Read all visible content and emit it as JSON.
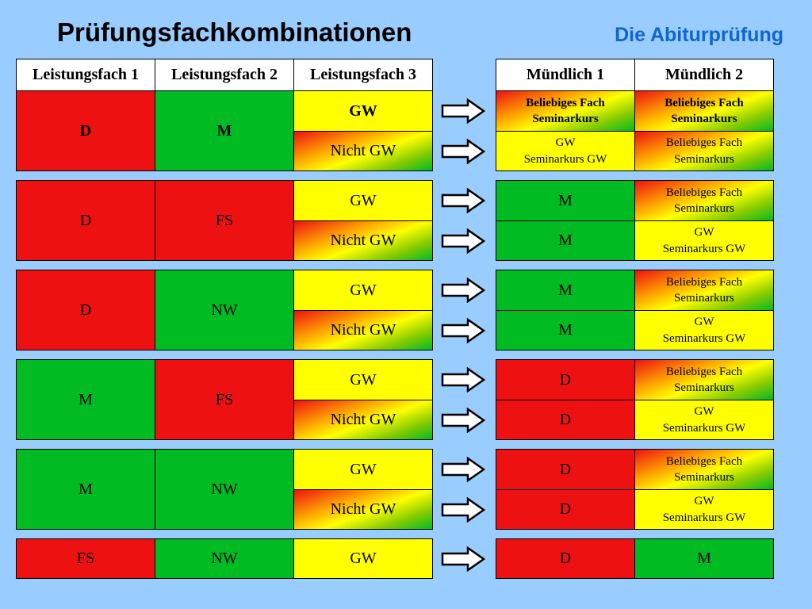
{
  "title": "Prüfungsfachkombinationen",
  "subtitle": "Die Abiturprüfung",
  "headers": {
    "lf1": "Leistungsfach 1",
    "lf2": "Leistungsfach 2",
    "lf3": "Leistungsfach 3",
    "m1": "Mündlich 1",
    "m2": "Mündlich 2"
  },
  "colors": {
    "background": "#99ccff",
    "red": "#ee1111",
    "green": "#00bb22",
    "yellow": "#ffff00",
    "subtitle": "#1166cc"
  },
  "groups": [
    {
      "lf1": "D",
      "lf1_color": "red",
      "lf2": "M",
      "lf2_color": "green",
      "rows": [
        {
          "lf3": "GW",
          "lf3_color": "yellow",
          "m1": "Beliebiges Fach\nSeminarkurs",
          "m1_color": "grad",
          "m2": "Beliebiges Fach\nSeminarkurs",
          "m2_color": "grad"
        },
        {
          "lf3": "Nicht GW",
          "lf3_color": "grad",
          "m1": "GW\nSeminarkurs GW",
          "m1_color": "yellow",
          "m2": "Beliebiges Fach\nSeminarkurs",
          "m2_color": "grad"
        }
      ]
    },
    {
      "lf1": "D",
      "lf1_color": "red",
      "lf2": "FS",
      "lf2_color": "red",
      "rows": [
        {
          "lf3": "GW",
          "lf3_color": "yellow",
          "m1": "M",
          "m1_color": "green",
          "m2": "Beliebiges Fach\nSeminarkurs",
          "m2_color": "grad"
        },
        {
          "lf3": "Nicht GW",
          "lf3_color": "grad",
          "m1": "M",
          "m1_color": "green",
          "m2": "GW\nSeminarkurs GW",
          "m2_color": "yellow"
        }
      ]
    },
    {
      "lf1": "D",
      "lf1_color": "red",
      "lf2": "NW",
      "lf2_color": "green",
      "rows": [
        {
          "lf3": "GW",
          "lf3_color": "yellow",
          "m1": "M",
          "m1_color": "green",
          "m2": "Beliebiges Fach\nSeminarkurs",
          "m2_color": "grad"
        },
        {
          "lf3": "Nicht GW",
          "lf3_color": "grad",
          "m1": "M",
          "m1_color": "green",
          "m2": "GW\nSeminarkurs GW",
          "m2_color": "yellow"
        }
      ]
    },
    {
      "lf1": "M",
      "lf1_color": "green",
      "lf2": "FS",
      "lf2_color": "red",
      "rows": [
        {
          "lf3": "GW",
          "lf3_color": "yellow",
          "m1": "D",
          "m1_color": "red",
          "m2": "Beliebiges Fach\nSeminarkurs",
          "m2_color": "grad"
        },
        {
          "lf3": "Nicht GW",
          "lf3_color": "grad",
          "m1": "D",
          "m1_color": "red",
          "m2": "GW\nSeminarkurs GW",
          "m2_color": "yellow"
        }
      ]
    },
    {
      "lf1": "M",
      "lf1_color": "green",
      "lf2": "NW",
      "lf2_color": "green",
      "rows": [
        {
          "lf3": "GW",
          "lf3_color": "yellow",
          "m1": "D",
          "m1_color": "red",
          "m2": "Beliebiges Fach\nSeminarkurs",
          "m2_color": "grad"
        },
        {
          "lf3": "Nicht GW",
          "lf3_color": "grad",
          "m1": "D",
          "m1_color": "red",
          "m2": "GW\nSeminarkurs GW",
          "m2_color": "yellow"
        }
      ]
    },
    {
      "lf1": "FS",
      "lf1_color": "red",
      "lf2": "NW",
      "lf2_color": "green",
      "rows": [
        {
          "lf3": "GW",
          "lf3_color": "yellow",
          "m1": "D",
          "m1_color": "red",
          "m2": "M",
          "m2_color": "green"
        }
      ]
    }
  ]
}
